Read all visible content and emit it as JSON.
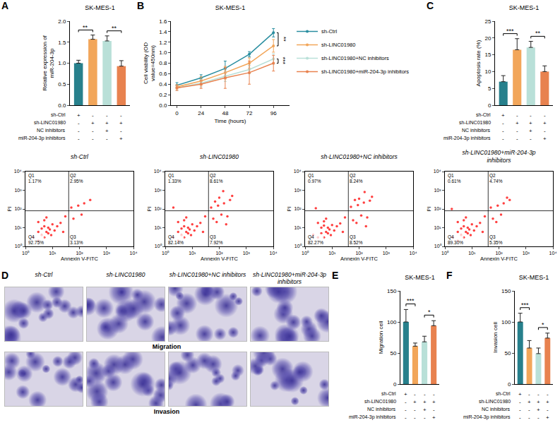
{
  "chart_data": [
    {
      "panel": "A",
      "type": "bar",
      "title": "SK-MES-1",
      "y_label": "Relative expression of miR-204-3p",
      "categories": [
        null,
        null,
        null,
        null
      ],
      "values": [
        1.0,
        1.57,
        1.53,
        0.93
      ],
      "errors": [
        0.07,
        0.1,
        0.12,
        0.13
      ],
      "colors": [
        "#27808c",
        "#f2a65a",
        "#b9e0d8",
        "#e8824f"
      ],
      "ylim": [
        0,
        2
      ],
      "yticks": [
        {
          "value": 0,
          "label": "0.0"
        },
        {
          "value": 0.5,
          "label": "0.5"
        },
        {
          "value": 1,
          "label": "1.0"
        },
        {
          "value": 1.5,
          "label": "1.5"
        },
        {
          "value": 2,
          "label": "2.0"
        }
      ],
      "grid": false,
      "significance": [
        {
          "from": 0,
          "to": 1,
          "label": "**"
        },
        {
          "from": 2,
          "to": 3,
          "label": "**"
        }
      ],
      "design": {
        "rows": [
          "sh-Ctrl",
          "sh-LINC01980",
          "NC inhibitors",
          "miR-204-3p inhibitors"
        ],
        "marks": [
          [
            "+",
            "-",
            "-",
            "-"
          ],
          [
            "-",
            "+",
            "+",
            "+"
          ],
          [
            "-",
            "-",
            "+",
            "-"
          ],
          [
            "-",
            "-",
            "-",
            "+"
          ]
        ]
      }
    },
    {
      "panel": "B",
      "type": "line",
      "title": "SK-MES-1",
      "x_label": "Time (hours)",
      "y_label": "Cell viability (OD value=450nm)",
      "x": [
        0,
        24,
        48,
        72,
        96
      ],
      "xlim": [
        -6,
        112
      ],
      "xticks": [
        0,
        24,
        48,
        72,
        96
      ],
      "ylim": [
        0,
        1.6
      ],
      "yticks": [
        {
          "value": 0,
          "label": "0.0"
        },
        {
          "value": 0.2,
          "label": "0.2"
        },
        {
          "value": 0.4,
          "label": "0.4"
        },
        {
          "value": 0.6,
          "label": "0.6"
        },
        {
          "value": 0.8,
          "label": "0.8"
        },
        {
          "value": 1,
          "label": "1.0"
        },
        {
          "value": 1.2,
          "label": "1.2"
        },
        {
          "value": 1.4,
          "label": "1.4"
        },
        {
          "value": 1.6,
          "label": "1.6"
        }
      ],
      "grid": false,
      "legend": "right",
      "series": [
        {
          "name": "sh-Ctrl",
          "color": "#2a8ea0",
          "marker": "circle",
          "values": [
            0.38,
            0.52,
            0.7,
            0.97,
            1.38
          ],
          "errors": [
            0.05,
            0.06,
            0.14,
            0.05,
            0.08
          ]
        },
        {
          "name": "sh-LINC01980",
          "color": "#f2a65a",
          "marker": "circle",
          "values": [
            0.35,
            0.46,
            0.62,
            0.8,
            1.13
          ],
          "errors": [
            0.04,
            0.08,
            0.12,
            0.1,
            0.12
          ]
        },
        {
          "name": "sh-LINC01980+NC inhibitors",
          "color": "#b9e0d8",
          "marker": "circle",
          "values": [
            0.33,
            0.42,
            0.55,
            0.68,
            0.88
          ],
          "errors": [
            0.05,
            0.07,
            0.1,
            0.08,
            0.1
          ]
        },
        {
          "name": "sh-LINC01980+miR-204-3p inhibitors",
          "color": "#e8824f",
          "marker": "circle",
          "values": [
            0.33,
            0.4,
            0.52,
            0.62,
            0.8
          ],
          "errors": [
            0.05,
            0.08,
            0.2,
            0.22,
            0.15
          ]
        }
      ],
      "significance": [
        {
          "from": "sh-Ctrl",
          "to": "sh-LINC01980",
          "label": "**"
        },
        {
          "from": "sh-LINC01980+NC inhibitors",
          "to": "sh-LINC01980+miR-204-3p inhibitors",
          "label": "***"
        }
      ]
    },
    {
      "panel": "C",
      "type": "bar",
      "title": "SK-MES-1",
      "y_label": "Apoptosis rate (%)",
      "categories": [
        null,
        null,
        null,
        null
      ],
      "values": [
        7.0,
        16.5,
        17.2,
        10.0
      ],
      "errors": [
        1.8,
        3.3,
        1.8,
        1.7
      ],
      "colors": [
        "#27808c",
        "#f2a65a",
        "#b9e0d8",
        "#e8824f"
      ],
      "ylim": [
        0,
        25
      ],
      "yticks": [
        0,
        5,
        10,
        15,
        20,
        25
      ],
      "grid": false,
      "significance": [
        {
          "from": 0,
          "to": 1,
          "label": "***"
        },
        {
          "from": 2,
          "to": 3,
          "label": "**"
        }
      ],
      "design": {
        "rows": [
          "sh-Ctrl",
          "sh-LINC01980",
          "NC inhibitors",
          "miR-204-3p inhibitors"
        ],
        "marks": [
          [
            "+",
            "-",
            "-",
            "-"
          ],
          [
            "-",
            "+",
            "+",
            "+"
          ],
          [
            "-",
            "-",
            "+",
            "-"
          ],
          [
            "-",
            "-",
            "-",
            "+"
          ]
        ]
      }
    },
    {
      "type": "scatter",
      "title": "sh-Ctrl",
      "x_label": "Annexin V-FITC",
      "y_label": "PI",
      "log": true,
      "xlim": [
        1,
        10000
      ],
      "ylim": [
        1,
        10000
      ],
      "xticks": [
        {
          "value": 1,
          "label": "10⁰"
        },
        {
          "value": 10,
          "label": "10¹"
        },
        {
          "value": 100,
          "label": "10²"
        },
        {
          "value": 1000,
          "label": "10³"
        },
        {
          "value": 10000,
          "label": "10⁴"
        }
      ],
      "yticks": [
        {
          "value": 1,
          "label": "10⁰"
        },
        {
          "value": 10,
          "label": "10¹"
        },
        {
          "value": 100,
          "label": "10²"
        },
        {
          "value": 1000,
          "label": "10³"
        },
        {
          "value": 10000,
          "label": "10⁴"
        }
      ],
      "color": "#ff0000",
      "marker": "circle",
      "gates": {
        "x": 40,
        "y": 80
      },
      "quadrants": [
        {
          "name": "Q1",
          "label": "1.17%"
        },
        {
          "name": "Q2",
          "label": "2.95%"
        },
        {
          "name": "Q3",
          "label": "3.13%"
        },
        {
          "name": "Q4",
          "label": "92.75%"
        }
      ],
      "x": [
        2,
        3,
        3,
        4,
        4,
        5,
        5,
        6,
        7,
        8,
        9,
        10,
        12,
        3,
        5,
        7,
        15,
        20,
        25,
        6,
        30,
        60,
        90,
        150,
        250,
        50,
        120
      ],
      "y": [
        3,
        2,
        6,
        4,
        9,
        3,
        12,
        6,
        5,
        8,
        4,
        15,
        7,
        20,
        25,
        10,
        12,
        18,
        6,
        35,
        40,
        30,
        150,
        200,
        300,
        120,
        50
      ]
    },
    {
      "type": "scatter",
      "title": "sh-LINC01980",
      "x_label": "Annexin V-FITC",
      "y_label": "PI",
      "log": true,
      "xlim": [
        1,
        10000
      ],
      "ylim": [
        1,
        10000
      ],
      "xticks": [
        {
          "value": 1,
          "label": "10⁰"
        },
        {
          "value": 10,
          "label": "10¹"
        },
        {
          "value": 100,
          "label": "10²"
        },
        {
          "value": 1000,
          "label": "10³"
        },
        {
          "value": 10000,
          "label": "10⁴"
        }
      ],
      "yticks": [
        {
          "value": 1,
          "label": "10⁰"
        },
        {
          "value": 10,
          "label": "10¹"
        },
        {
          "value": 100,
          "label": "10²"
        },
        {
          "value": 1000,
          "label": "10³"
        },
        {
          "value": 10000,
          "label": "10⁴"
        }
      ],
      "color": "#ff0000",
      "marker": "circle",
      "gates": {
        "x": 40,
        "y": 80
      },
      "quadrants": [
        {
          "name": "Q1",
          "label": "1.33%"
        },
        {
          "name": "Q2",
          "label": "8.61%"
        },
        {
          "name": "Q3",
          "label": "7.92%"
        },
        {
          "name": "Q4",
          "label": "82.14%"
        }
      ],
      "x": [
        2,
        3,
        3,
        4,
        4,
        5,
        5,
        6,
        7,
        8,
        9,
        10,
        12,
        3,
        5,
        7,
        15,
        20,
        25,
        6,
        30,
        60,
        90,
        150,
        250,
        50,
        120,
        80,
        200,
        300,
        100,
        70,
        180,
        140,
        2
      ],
      "y": [
        3,
        2,
        6,
        4,
        9,
        3,
        12,
        6,
        5,
        8,
        4,
        15,
        7,
        20,
        25,
        10,
        12,
        18,
        6,
        35,
        40,
        30,
        150,
        200,
        300,
        120,
        50,
        20,
        40,
        500,
        400,
        250,
        15,
        900,
        120
      ]
    },
    {
      "type": "scatter",
      "title": "sh-LINC01980+NC inhibitors",
      "x_label": "Annexin V-FITC",
      "y_label": "PI",
      "log": true,
      "xlim": [
        1,
        10000
      ],
      "ylim": [
        1,
        10000
      ],
      "xticks": [
        {
          "value": 1,
          "label": "10⁰"
        },
        {
          "value": 10,
          "label": "10¹"
        },
        {
          "value": 100,
          "label": "10²"
        },
        {
          "value": 1000,
          "label": "10³"
        },
        {
          "value": 10000,
          "label": "10⁴"
        }
      ],
      "yticks": [
        {
          "value": 1,
          "label": "10⁰"
        },
        {
          "value": 10,
          "label": "10¹"
        },
        {
          "value": 100,
          "label": "10²"
        },
        {
          "value": 1000,
          "label": "10³"
        },
        {
          "value": 10000,
          "label": "10⁴"
        }
      ],
      "color": "#ff0000",
      "marker": "circle",
      "gates": {
        "x": 40,
        "y": 80
      },
      "quadrants": [
        {
          "name": "Q1",
          "label": "0.97%"
        },
        {
          "name": "Q2",
          "label": "8.24%"
        },
        {
          "name": "Q3",
          "label": "8.52%"
        },
        {
          "name": "Q4",
          "label": "82.27%"
        }
      ],
      "x": [
        2,
        3,
        4,
        4,
        5,
        5,
        6,
        7,
        8,
        9,
        10,
        12,
        3,
        5,
        7,
        15,
        20,
        25,
        6,
        30,
        60,
        90,
        150,
        250,
        50,
        120,
        80,
        200,
        300,
        100,
        70,
        180,
        160,
        2.5
      ],
      "y": [
        4,
        3,
        5,
        10,
        3,
        13,
        6,
        5,
        8,
        4,
        14,
        7,
        18,
        22,
        10,
        12,
        17,
        6,
        30,
        35,
        25,
        160,
        220,
        280,
        130,
        45,
        18,
        35,
        450,
        350,
        300,
        12,
        800,
        110
      ]
    },
    {
      "type": "scatter",
      "title": "sh-LINC01980+miR-204-3p inhibitors",
      "x_label": "Annexin V-FITC",
      "y_label": "PI",
      "log": true,
      "xlim": [
        1,
        10000
      ],
      "ylim": [
        1,
        10000
      ],
      "xticks": [
        {
          "value": 1,
          "label": "10⁰"
        },
        {
          "value": 10,
          "label": "10¹"
        },
        {
          "value": 100,
          "label": "10²"
        },
        {
          "value": 1000,
          "label": "10³"
        },
        {
          "value": 10000,
          "label": "10⁴"
        }
      ],
      "yticks": [
        {
          "value": 1,
          "label": "10⁰"
        },
        {
          "value": 10,
          "label": "10¹"
        },
        {
          "value": 100,
          "label": "10²"
        },
        {
          "value": 1000,
          "label": "10³"
        },
        {
          "value": 10000,
          "label": "10⁴"
        }
      ],
      "color": "#ff0000",
      "marker": "circle",
      "gates": {
        "x": 40,
        "y": 80
      },
      "quadrants": [
        {
          "name": "Q1",
          "label": "0.61%"
        },
        {
          "name": "Q2",
          "label": "4.74%"
        },
        {
          "name": "Q3",
          "label": "5.35%"
        },
        {
          "name": "Q4",
          "label": "89.30%"
        }
      ],
      "x": [
        2,
        3,
        3,
        4,
        4,
        5,
        5,
        6,
        7,
        8,
        9,
        10,
        12,
        3,
        5,
        7,
        15,
        20,
        25,
        6,
        30,
        60,
        90,
        150,
        250,
        50,
        120,
        80,
        200,
        1.8
      ],
      "y": [
        3,
        2,
        6,
        4,
        9,
        3,
        12,
        6,
        5,
        8,
        4,
        15,
        7,
        20,
        25,
        10,
        12,
        18,
        6,
        35,
        40,
        30,
        150,
        200,
        300,
        120,
        50,
        20,
        400,
        100
      ]
    },
    {
      "panel": "E",
      "type": "bar",
      "title": "SK-MES-1",
      "y_label": "Migration cell",
      "categories": [
        null,
        null,
        null,
        null
      ],
      "values": [
        100,
        61,
        68,
        94
      ],
      "errors": [
        20,
        5,
        9,
        8
      ],
      "colors": [
        "#27808c",
        "#f2a65a",
        "#b9e0d8",
        "#e8824f"
      ],
      "ylim": [
        0,
        150
      ],
      "yticks": [
        0,
        50,
        100,
        150
      ],
      "grid": false,
      "significance": [
        {
          "from": 0,
          "to": 1,
          "label": "***"
        },
        {
          "from": 2,
          "to": 3,
          "label": "*"
        }
      ],
      "design": {
        "rows": [
          "sh-Ctrl",
          "sh-LINC01980",
          "NC inhibitors",
          "miR-204-3p inhibitors"
        ],
        "marks": [
          [
            "+",
            "-",
            "-",
            "-"
          ],
          [
            "-",
            "+",
            "+",
            "+"
          ],
          [
            "-",
            "-",
            "+",
            "-"
          ],
          [
            "-",
            "-",
            "-",
            "+"
          ]
        ]
      }
    },
    {
      "panel": "F",
      "type": "bar",
      "title": "SK-MES-1",
      "y_label": "Invasion cell",
      "categories": [
        null,
        null,
        null,
        null
      ],
      "values": [
        100,
        58,
        49,
        74
      ],
      "errors": [
        14,
        12,
        9,
        8
      ],
      "colors": [
        "#27808c",
        "#f2a65a",
        "#b9e0d8",
        "#e8824f"
      ],
      "ylim": [
        0,
        150
      ],
      "yticks": [
        0,
        50,
        100,
        150
      ],
      "grid": false,
      "significance": [
        {
          "from": 0,
          "to": 1,
          "label": "***"
        },
        {
          "from": 2,
          "to": 3,
          "label": "*"
        }
      ],
      "design": {
        "rows": [
          "sh-Ctrl",
          "sh-LINC01980",
          "NC inhibitors",
          "miR-204-3p inhibitors"
        ],
        "marks": [
          [
            "+",
            "-",
            "-",
            "-"
          ],
          [
            "-",
            "+",
            "+",
            "+"
          ],
          [
            "-",
            "-",
            "+",
            "-"
          ],
          [
            "-",
            "-",
            "-",
            "+"
          ]
        ]
      }
    }
  ],
  "images": {
    "panel": "D",
    "columns": [
      "sh-Ctrl",
      "sh-LINC01980",
      "sh-LINC01980+NC inhibitors",
      "sh-LINC01980+miR-204-3p inhibitors"
    ],
    "rows": [
      "Migration",
      "Invasion"
    ]
  }
}
